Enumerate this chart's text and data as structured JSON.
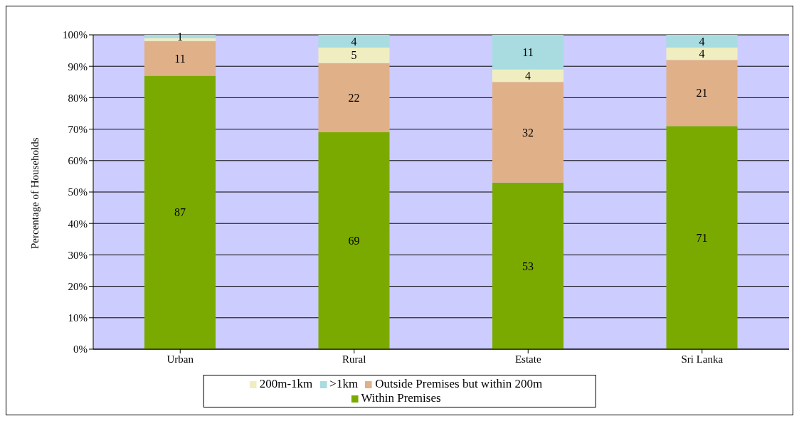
{
  "chart_data": {
    "type": "bar",
    "stacked": true,
    "ylabel": "Percentage of Households",
    "categories": [
      "Urban",
      "Rural",
      "Estate",
      "Sri Lanka"
    ],
    "series": [
      {
        "name": "Within Premises",
        "color": "#7aaa00",
        "values": [
          87,
          69,
          53,
          71
        ],
        "value_labels": [
          "87",
          "69",
          "53",
          "71"
        ]
      },
      {
        "name": "Outside Premises but within 200m",
        "color": "#e0b088",
        "values": [
          11,
          22,
          32,
          21
        ],
        "value_labels": [
          "11",
          "22",
          "32",
          "21"
        ]
      },
      {
        "name": "200m-1km",
        "color": "#f0eec0",
        "values": [
          1,
          5,
          4,
          4
        ],
        "value_labels": [
          null,
          "5",
          "4",
          "4"
        ]
      },
      {
        "name": ">1km",
        "color": "#a8dce0",
        "values": [
          1,
          4,
          11,
          4
        ],
        "value_labels": [
          "1",
          "4",
          "11",
          "4"
        ]
      }
    ],
    "ylim": [
      0,
      100
    ],
    "yticks": [
      {
        "value": 0,
        "label": "0%"
      },
      {
        "value": 10,
        "label": "10%"
      },
      {
        "value": 20,
        "label": "20%"
      },
      {
        "value": 30,
        "label": "30%"
      },
      {
        "value": 40,
        "label": "40%"
      },
      {
        "value": 50,
        "label": "50%"
      },
      {
        "value": 60,
        "label": "60%"
      },
      {
        "value": 70,
        "label": "70%"
      },
      {
        "value": 80,
        "label": "80%"
      },
      {
        "value": 90,
        "label": "90%"
      },
      {
        "value": 100,
        "label": "100%"
      }
    ],
    "grid": "y",
    "legend": "bottom"
  }
}
